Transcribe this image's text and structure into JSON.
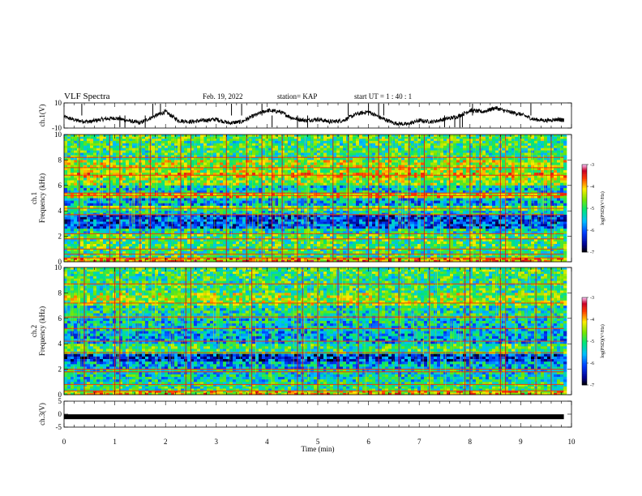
{
  "header": {
    "title": "VLF Spectra",
    "date": "Feb. 19, 2022",
    "station": "station= KAP",
    "start": "start  UT =   1 : 40 : 1"
  },
  "chart_data": [
    {
      "type": "line",
      "panel": "ch1_waveform",
      "ylabel": "ch.1(V)",
      "ylim": [
        -10,
        10
      ],
      "yticks": [
        "10",
        "-10"
      ],
      "xlim": [
        0,
        10
      ],
      "x": [
        0.0,
        0.25,
        0.5,
        0.75,
        1.0,
        1.25,
        1.5,
        1.75,
        2.0,
        2.25,
        2.5,
        2.75,
        3.0,
        3.25,
        3.5,
        3.75,
        4.0,
        4.25,
        4.5,
        4.75,
        5.0,
        5.25,
        5.5,
        5.75,
        6.0,
        6.25,
        6.5,
        6.75,
        7.0,
        7.25,
        7.5,
        7.75,
        8.0,
        8.25,
        8.5,
        8.75,
        9.0,
        9.25,
        9.5,
        9.75,
        9.85
      ],
      "values": [
        -1,
        -4,
        -5,
        -3,
        -2,
        -4,
        -6,
        -1,
        3,
        -4,
        -5,
        -4,
        -3,
        -6,
        -5,
        0,
        4,
        3,
        -2,
        -4,
        -3,
        -5,
        -4,
        1,
        3,
        -2,
        -6,
        -7,
        -4,
        -5,
        -3,
        -1,
        4,
        3,
        6,
        3,
        1,
        -3,
        -4,
        -3,
        -4
      ],
      "spikes": [
        0.35,
        1.1,
        1.2,
        1.6,
        1.75,
        1.9,
        3.3,
        3.5,
        3.9,
        4.1,
        4.6,
        4.8,
        5.6,
        6.0,
        6.2,
        6.3,
        7.5,
        7.7,
        7.8,
        7.85,
        8.05,
        9.2
      ]
    },
    {
      "type": "heatmap",
      "panel": "ch1_spectrogram",
      "ylabel": "ch.1\nFrequency (kHz)",
      "ylim": [
        0,
        10
      ],
      "yticks": [
        "0",
        "2",
        "4",
        "6",
        "8",
        "10"
      ],
      "xlim": [
        0,
        10
      ],
      "color_scale": {
        "min": -7,
        "max": -3,
        "label": "log(PSD)(V²/Hz)",
        "ticks": [
          "-3",
          "-4",
          "-5",
          "-6",
          "-7"
        ]
      },
      "bands": [
        {
          "lo": 9.5,
          "hi": 10.0,
          "level": -4.8
        },
        {
          "lo": 8.0,
          "hi": 9.5,
          "level": -5.0
        },
        {
          "lo": 7.0,
          "hi": 8.0,
          "level": -4.5
        },
        {
          "lo": 6.6,
          "hi": 7.0,
          "level": -4.2
        },
        {
          "lo": 6.0,
          "hi": 6.6,
          "level": -4.6
        },
        {
          "lo": 5.4,
          "hi": 6.0,
          "level": -5.4
        },
        {
          "lo": 5.0,
          "hi": 5.4,
          "level": -4.3
        },
        {
          "lo": 4.4,
          "hi": 5.0,
          "level": -5.6
        },
        {
          "lo": 4.0,
          "hi": 4.4,
          "level": -4.8
        },
        {
          "lo": 3.7,
          "hi": 4.0,
          "level": -5.3
        },
        {
          "lo": 2.6,
          "hi": 3.7,
          "level": -6.1
        },
        {
          "lo": 2.2,
          "hi": 2.6,
          "level": -5.2
        },
        {
          "lo": 1.0,
          "hi": 2.2,
          "level": -4.9
        },
        {
          "lo": 0.3,
          "hi": 1.0,
          "level": -5.0
        },
        {
          "lo": 0.0,
          "hi": 0.3,
          "level": -4.0
        }
      ],
      "lines_khz": [
        0.3,
        0.6,
        1.0,
        1.8,
        2.2,
        3.7,
        4.2,
        5.2,
        5.4,
        6.8,
        7.4,
        8.2
      ],
      "bursts_min": [
        0.3,
        0.9,
        1.1,
        1.5,
        1.7,
        2.3,
        2.5,
        3.2,
        3.6,
        3.9,
        4.1,
        4.3,
        4.6,
        5.3,
        5.6,
        6.0,
        6.2,
        6.4,
        6.8,
        7.1,
        7.6,
        8.0,
        8.2,
        8.6,
        8.7,
        9.0,
        9.6
      ]
    },
    {
      "type": "heatmap",
      "panel": "ch2_spectrogram",
      "ylabel": "ch.2\nFrequency (kHz)",
      "ylim": [
        0,
        10
      ],
      "yticks": [
        "0",
        "2",
        "4",
        "6",
        "8",
        "10"
      ],
      "xlim": [
        0,
        10
      ],
      "color_scale": {
        "min": -7,
        "max": -3,
        "label": "log(PSD)(V²/Hz)",
        "ticks": [
          "-3",
          "-4",
          "-5",
          "-6",
          "-7"
        ]
      },
      "bands": [
        {
          "lo": 9.5,
          "hi": 10.0,
          "level": -4.9
        },
        {
          "lo": 8.0,
          "hi": 9.5,
          "level": -5.0
        },
        {
          "lo": 7.0,
          "hi": 8.0,
          "level": -4.6
        },
        {
          "lo": 6.0,
          "hi": 7.0,
          "level": -5.2
        },
        {
          "lo": 5.0,
          "hi": 6.0,
          "level": -5.4
        },
        {
          "lo": 4.0,
          "hi": 5.0,
          "level": -5.6
        },
        {
          "lo": 3.2,
          "hi": 4.0,
          "level": -5.0
        },
        {
          "lo": 2.6,
          "hi": 3.2,
          "level": -6.2
        },
        {
          "lo": 2.0,
          "hi": 2.6,
          "level": -5.6
        },
        {
          "lo": 1.0,
          "hi": 2.0,
          "level": -5.3
        },
        {
          "lo": 0.3,
          "hi": 1.0,
          "level": -5.1
        },
        {
          "lo": 0.0,
          "hi": 0.3,
          "level": -4.2
        }
      ],
      "lines_khz": [
        0.3,
        0.8,
        1.8,
        2.0,
        3.3,
        4.2,
        5.2,
        6.1,
        7.2,
        8.7
      ],
      "bursts_min": [
        0.4,
        1.0,
        1.1,
        2.4,
        2.5,
        3.7,
        4.6,
        4.7,
        5.0,
        5.4,
        5.8,
        6.2,
        6.6,
        7.2,
        7.9,
        8.0,
        8.6,
        8.7,
        9.3,
        9.6
      ]
    },
    {
      "type": "line",
      "panel": "ch3_waveform",
      "ylabel": "ch.3(V)",
      "ylim": [
        -5,
        5
      ],
      "yticks": [
        "5",
        "0",
        "-5"
      ],
      "xlim": [
        0,
        10
      ],
      "xlabel": "Time (min)",
      "xticks": [
        "0",
        "1",
        "2",
        "3",
        "4",
        "5",
        "6",
        "7",
        "8",
        "9",
        "10"
      ],
      "x": [
        0,
        9.85
      ],
      "values": [
        -1,
        -1
      ]
    }
  ]
}
